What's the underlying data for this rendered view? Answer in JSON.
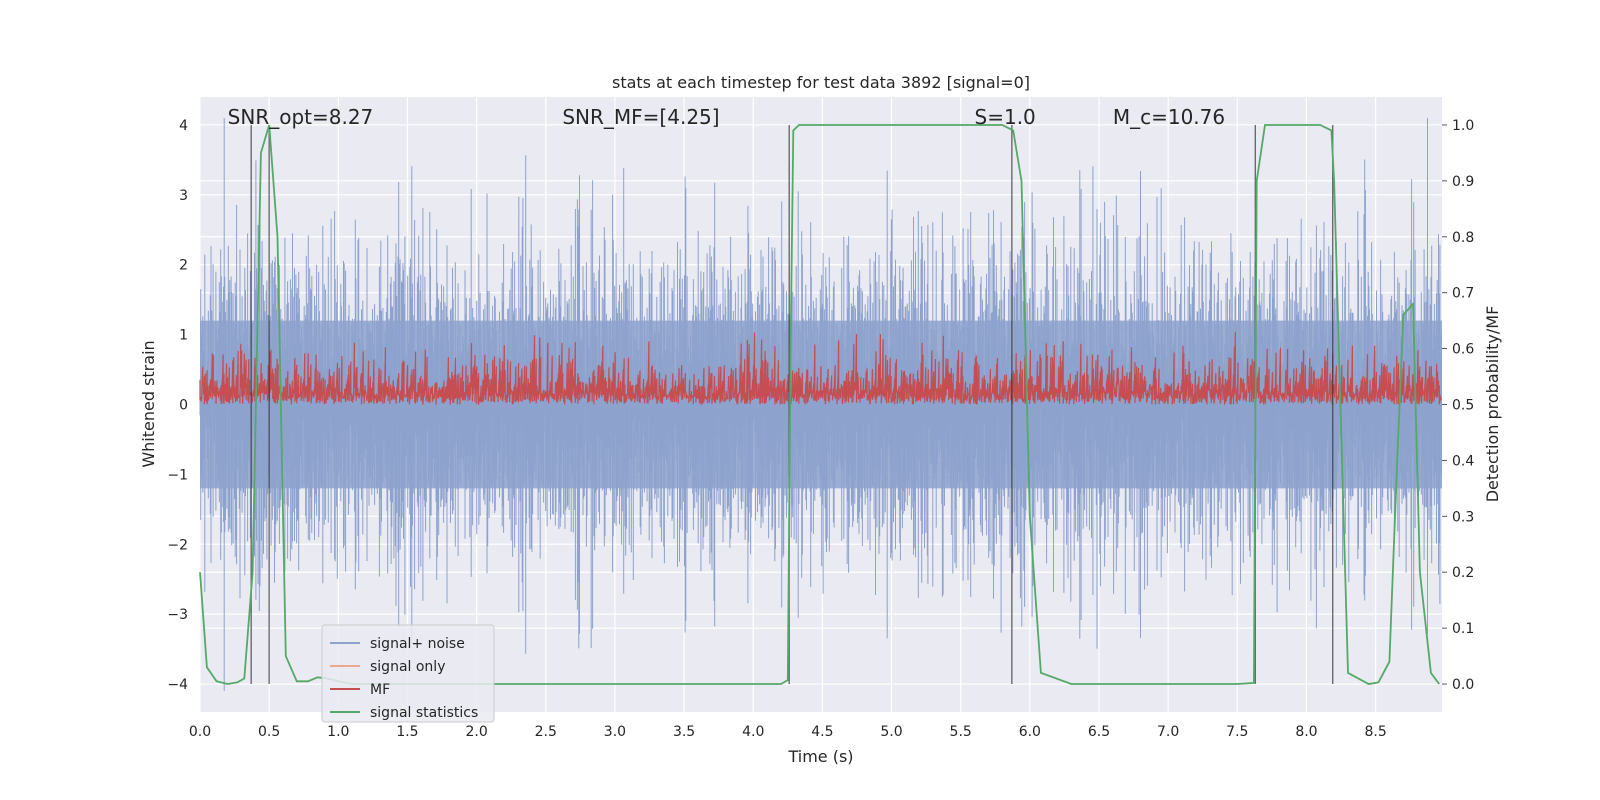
{
  "chart_data": {
    "type": "line",
    "title": "stats at each timestep for test data 3892 [signal=0]",
    "xlabel": "Time (s)",
    "ylabel_left": "Whitened strain",
    "ylabel_right": "Detection probability/MF",
    "xlim": [
      0.0,
      8.98
    ],
    "ylim_left": [
      -4.4,
      4.4
    ],
    "ylim_right": [
      -0.05,
      1.05
    ],
    "x_ticks": [
      "0.0",
      "0.5",
      "1.0",
      "1.5",
      "2.0",
      "2.5",
      "3.0",
      "3.5",
      "4.0",
      "4.5",
      "5.0",
      "5.5",
      "6.0",
      "6.5",
      "7.0",
      "7.5",
      "8.0",
      "8.5"
    ],
    "y_ticks_left": [
      "−4",
      "−3",
      "−2",
      "−1",
      "0",
      "1",
      "2",
      "3",
      "4"
    ],
    "y_ticks_right": [
      "0.0",
      "0.1",
      "0.2",
      "0.3",
      "0.4",
      "0.5",
      "0.6",
      "0.7",
      "0.8",
      "0.9",
      "1.0"
    ],
    "grid": true,
    "legend_placement": "lower-left",
    "annotations": [
      {
        "text": "SNR_opt=8.27",
        "x": 0.2
      },
      {
        "text": "SNR_MF=[4.25]",
        "x": 2.62
      },
      {
        "text": "S=1.0",
        "x": 5.6
      },
      {
        "text": "M_c=10.76",
        "x": 6.6
      }
    ],
    "series": [
      {
        "name": "signal+ noise",
        "color": "#8da2cc",
        "axis": "left",
        "style": "dense-noise",
        "amplitude_typical": 1.2,
        "amplitude_max": 4.1
      },
      {
        "name": "signal only",
        "color": "#eaa98d",
        "axis": "left",
        "style": "flat",
        "value": 0
      },
      {
        "name": "MF",
        "color": "#c44e52",
        "axis": "right",
        "style": "dense-noise",
        "baseline": 0.5,
        "amplitude_max": 0.63
      },
      {
        "name": "signal statistics",
        "color": "#55a868",
        "axis": "right",
        "style": "line",
        "x": [
          0.0,
          0.05,
          0.12,
          0.2,
          0.27,
          0.32,
          0.38,
          0.44,
          0.5,
          0.56,
          0.62,
          0.7,
          0.78,
          0.85,
          0.92,
          1.0,
          1.1,
          4.2,
          4.25,
          4.27,
          4.29,
          4.33,
          5.8,
          5.88,
          5.94,
          6.0,
          6.08,
          6.3,
          7.5,
          7.62,
          7.64,
          7.7,
          7.9,
          8.1,
          8.18,
          8.2,
          8.3,
          8.45,
          8.52,
          8.6,
          8.64,
          8.7,
          8.77,
          8.82,
          8.9,
          8.96
        ],
        "y": [
          0.2,
          0.03,
          0.005,
          0.0,
          0.003,
          0.01,
          0.2,
          0.95,
          1.0,
          0.8,
          0.05,
          0.005,
          0.005,
          0.012,
          0.01,
          0.005,
          0.0,
          0.0,
          0.007,
          0.6,
          0.99,
          1.0,
          1.0,
          0.99,
          0.9,
          0.3,
          0.02,
          0.0,
          0.0,
          0.002,
          0.9,
          1.0,
          1.0,
          1.0,
          0.99,
          0.9,
          0.02,
          0.0,
          0.003,
          0.04,
          0.3,
          0.66,
          0.68,
          0.2,
          0.02,
          0.0
        ]
      },
      {
        "name": "trigger markers",
        "color": "#333333",
        "axis": "right",
        "style": "vlines",
        "show_in_legend": false,
        "x": [
          0.37,
          0.5,
          4.26,
          5.87,
          7.63,
          8.19
        ]
      }
    ]
  }
}
